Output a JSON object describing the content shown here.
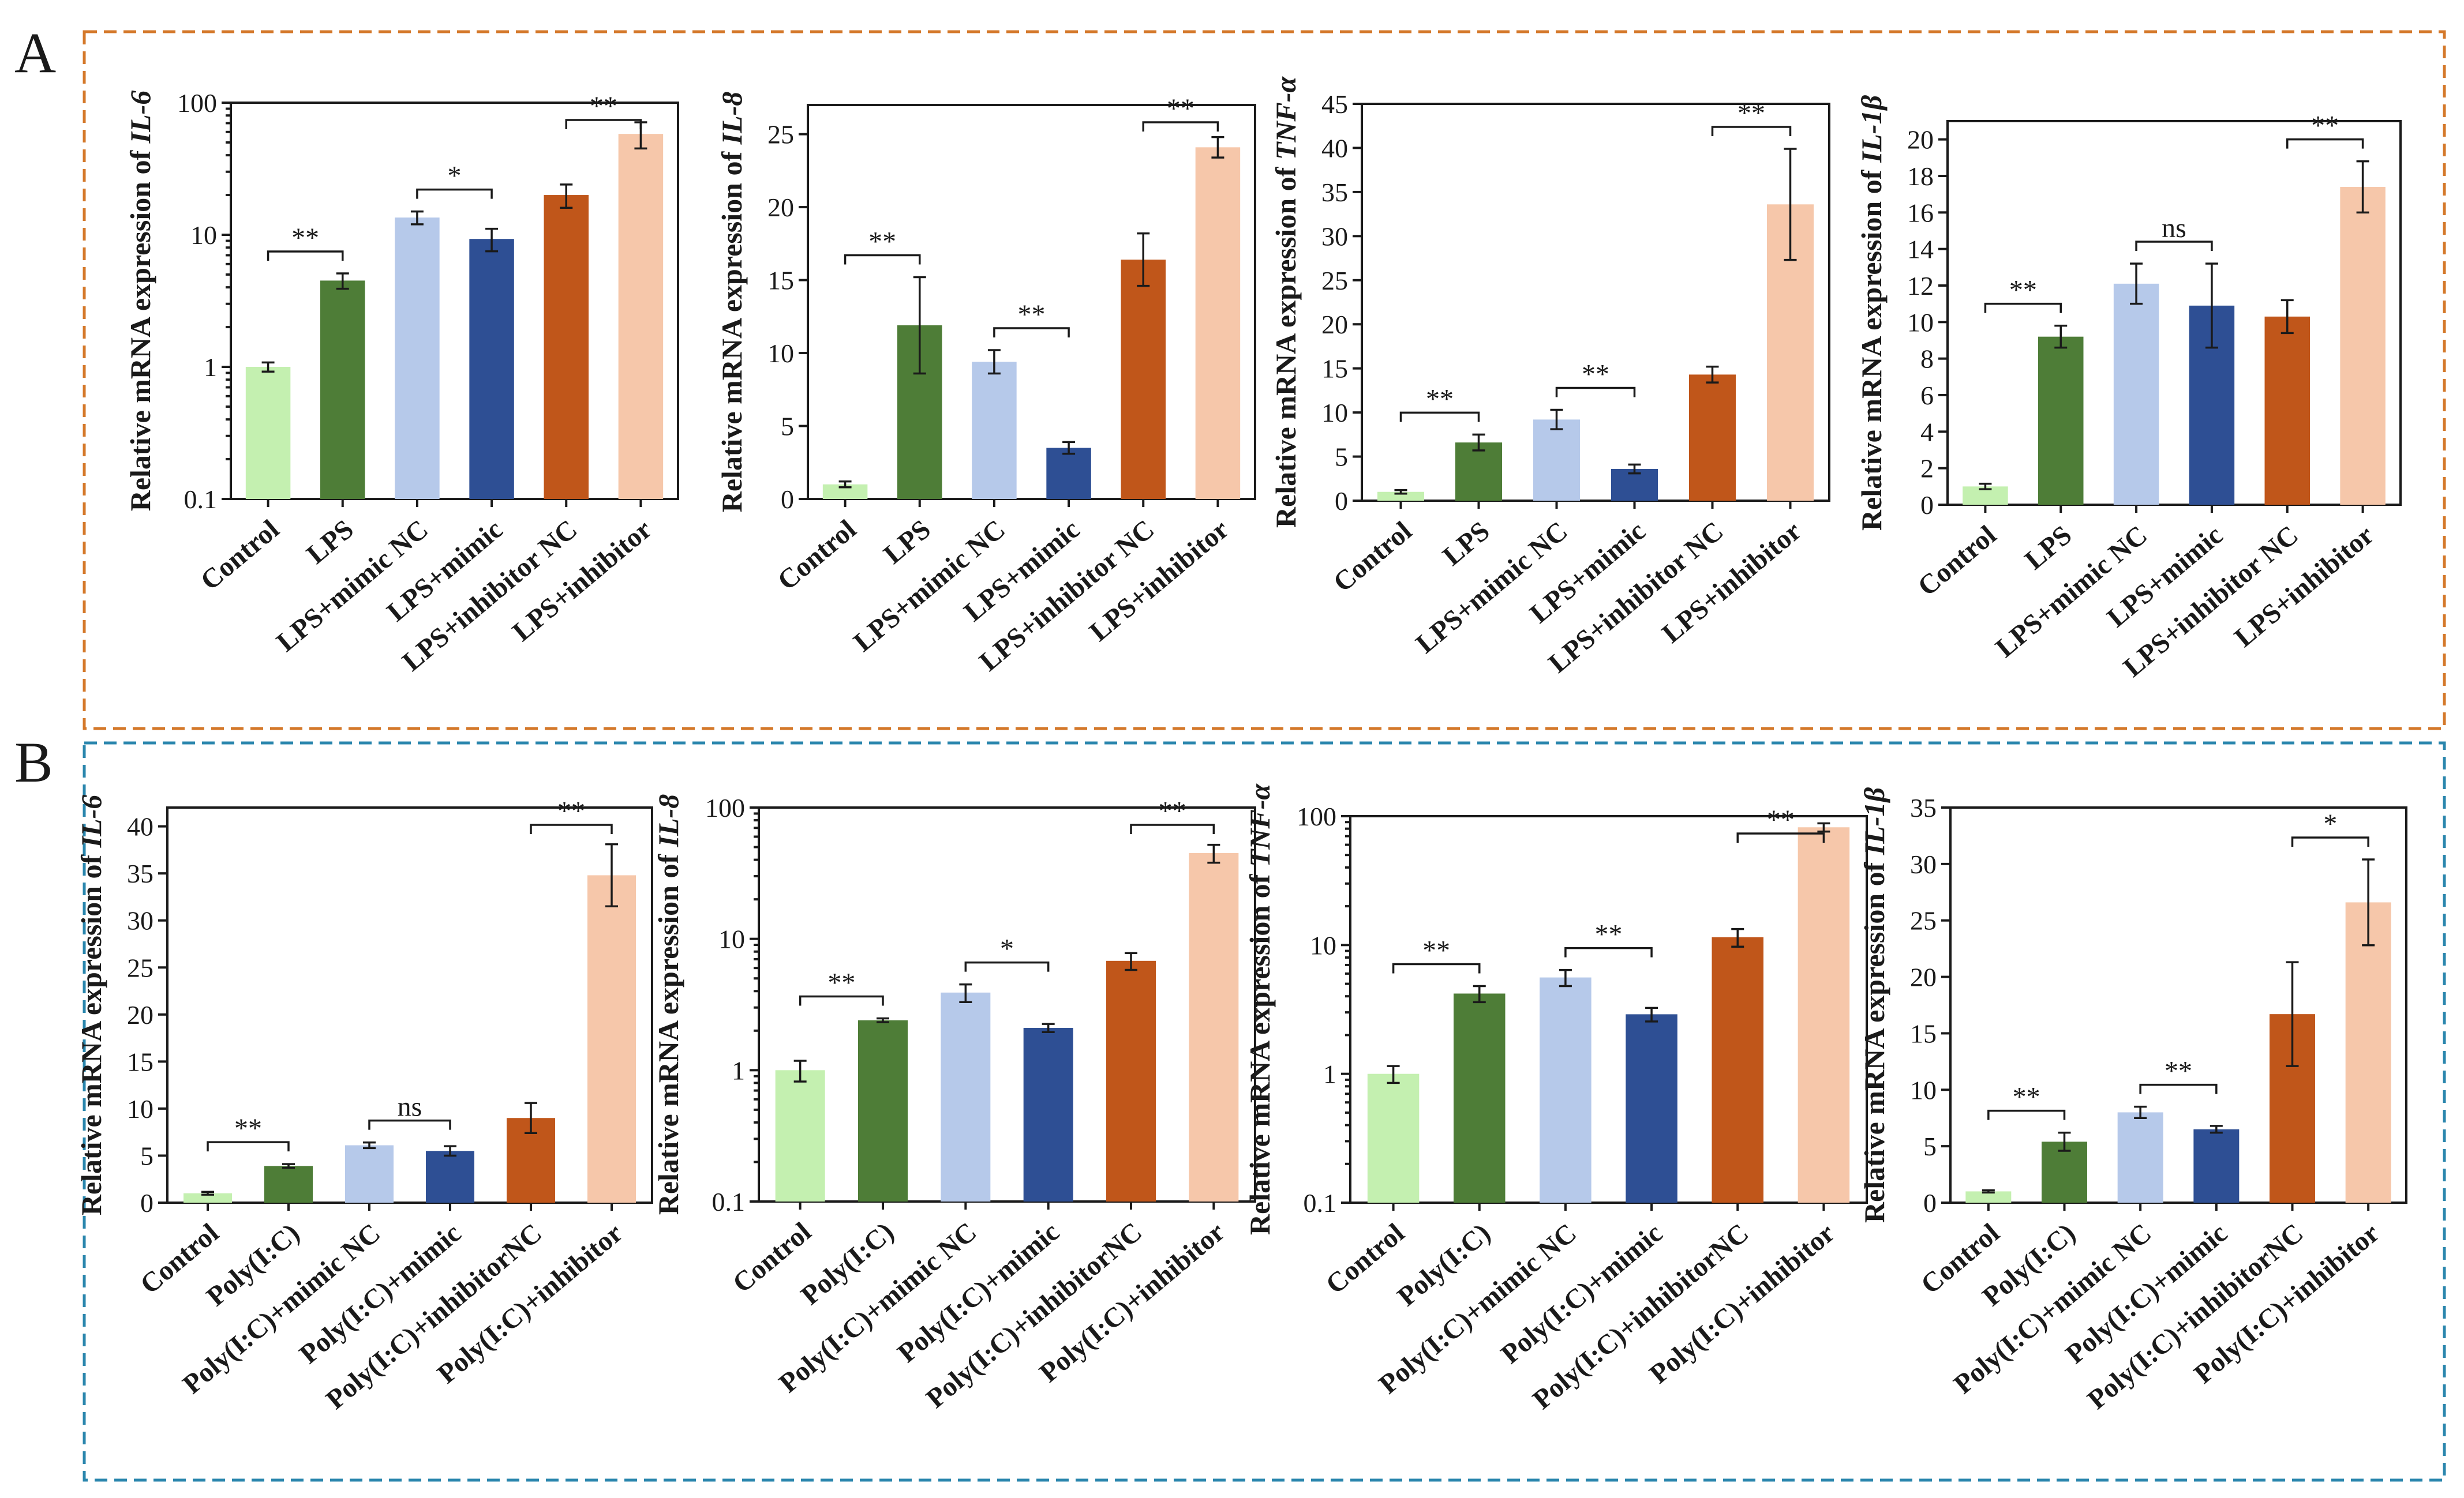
{
  "figure": {
    "panel_labels": [
      "A",
      "B"
    ],
    "colors": {
      "panel_a_border": "#d4782a",
      "panel_b_border": "#2a86ad",
      "bars": [
        "#c4f0b0",
        "#4e7d37",
        "#b6c9ea",
        "#2e4f94",
        "#c0561a",
        "#f6c7aa"
      ]
    }
  },
  "chart_data": [
    {
      "type": "bar",
      "panel": "A",
      "gene": "IL-6",
      "ylabel_prefix": "Relative mRNA expression of ",
      "scale": "log",
      "ylim": [
        0.1,
        100
      ],
      "yticks": [
        0.1,
        1,
        10,
        100
      ],
      "ytick_labels": [
        "0.1",
        "1",
        "10",
        "100"
      ],
      "categories": [
        "Control",
        "LPS",
        "LPS+mimic NC",
        "LPS+mimic",
        "LPS+inhibitor NC",
        "LPS+inhibitor"
      ],
      "values": [
        1.0,
        4.5,
        13.5,
        9.3,
        20,
        58
      ],
      "errors": [
        0.08,
        0.6,
        1.5,
        1.8,
        4,
        13
      ],
      "comparisons": [
        {
          "from": 0,
          "to": 1,
          "label": "**"
        },
        {
          "from": 2,
          "to": 3,
          "label": "*"
        },
        {
          "from": 4,
          "to": 5,
          "label": "**"
        }
      ]
    },
    {
      "type": "bar",
      "panel": "A",
      "gene": "IL-8",
      "ylabel_prefix": "Relative mRNA expression of ",
      "scale": "linear",
      "ylim": [
        0,
        27
      ],
      "yticks": [
        0,
        5,
        10,
        15,
        20,
        25
      ],
      "ytick_labels": [
        "0",
        "5",
        "10",
        "15",
        "20",
        "25"
      ],
      "categories": [
        "Control",
        "LPS",
        "LPS+mimic NC",
        "LPS+mimic",
        "LPS+inhibitor NC",
        "LPS+inhibitor"
      ],
      "values": [
        1.0,
        11.9,
        9.4,
        3.5,
        16.4,
        24.1
      ],
      "errors": [
        0.2,
        3.3,
        0.8,
        0.4,
        1.8,
        0.7
      ],
      "comparisons": [
        {
          "from": 0,
          "to": 1,
          "label": "**"
        },
        {
          "from": 2,
          "to": 3,
          "label": "**"
        },
        {
          "from": 4,
          "to": 5,
          "label": "**"
        }
      ]
    },
    {
      "type": "bar",
      "panel": "A",
      "gene": "TNF-α",
      "ylabel_prefix": "Relative mRNA expression of ",
      "scale": "linear",
      "ylim": [
        0,
        45
      ],
      "yticks": [
        0,
        5,
        10,
        15,
        20,
        25,
        30,
        35,
        40,
        45
      ],
      "ytick_labels": [
        "0",
        "5",
        "10",
        "15",
        "20",
        "25",
        "30",
        "35",
        "40",
        "45"
      ],
      "categories": [
        "Control",
        "LPS",
        "LPS+mimic NC",
        "LPS+mimic",
        "LPS+inhibitor NC",
        "LPS+inhibitor"
      ],
      "values": [
        1.0,
        6.6,
        9.2,
        3.6,
        14.3,
        33.6
      ],
      "errors": [
        0.2,
        0.9,
        1.1,
        0.5,
        0.9,
        6.3
      ],
      "comparisons": [
        {
          "from": 0,
          "to": 1,
          "label": "**"
        },
        {
          "from": 2,
          "to": 3,
          "label": "**"
        },
        {
          "from": 4,
          "to": 5,
          "label": "**"
        }
      ]
    },
    {
      "type": "bar",
      "panel": "A",
      "gene": "IL-1β",
      "ylabel_prefix": "Relative mRNA expression of ",
      "scale": "linear",
      "ylim": [
        0,
        21
      ],
      "yticks": [
        0,
        2,
        4,
        6,
        8,
        10,
        12,
        14,
        16,
        18,
        20
      ],
      "ytick_labels": [
        "0",
        "2",
        "4",
        "6",
        "8",
        "10",
        "12",
        "14",
        "16",
        "18",
        "20"
      ],
      "categories": [
        "Control",
        "LPS",
        "LPS+mimic NC",
        "LPS+mimic",
        "LPS+inhibitor NC",
        "LPS+inhibitor"
      ],
      "values": [
        1.0,
        9.2,
        12.1,
        10.9,
        10.3,
        17.4
      ],
      "errors": [
        0.15,
        0.6,
        1.1,
        2.3,
        0.9,
        1.4
      ],
      "comparisons": [
        {
          "from": 0,
          "to": 1,
          "label": "**"
        },
        {
          "from": 2,
          "to": 3,
          "label": "ns"
        },
        {
          "from": 4,
          "to": 5,
          "label": "**"
        }
      ]
    },
    {
      "type": "bar",
      "panel": "B",
      "gene": "IL-6",
      "ylabel_prefix": "Relative mRNA expression of ",
      "scale": "linear",
      "ylim": [
        0,
        42
      ],
      "yticks": [
        0,
        5,
        10,
        15,
        20,
        25,
        30,
        35,
        40
      ],
      "ytick_labels": [
        "0",
        "5",
        "10",
        "15",
        "20",
        "25",
        "30",
        "35",
        "40"
      ],
      "categories": [
        "Control",
        "Poly(I:C)",
        "Poly(I:C)+mimic NC",
        "Poly(I:C)+mimic",
        "Poly(I:C)+inhibitorNC",
        "Poly(I:C)+inhibitor"
      ],
      "values": [
        1.0,
        3.9,
        6.1,
        5.5,
        9.0,
        34.8
      ],
      "errors": [
        0.15,
        0.2,
        0.3,
        0.5,
        1.6,
        3.3
      ],
      "comparisons": [
        {
          "from": 0,
          "to": 1,
          "label": "**"
        },
        {
          "from": 2,
          "to": 3,
          "label": "ns"
        },
        {
          "from": 4,
          "to": 5,
          "label": "**"
        }
      ]
    },
    {
      "type": "bar",
      "panel": "B",
      "gene": "IL-8",
      "ylabel_prefix": "Relative mRNA expression of ",
      "scale": "log",
      "ylim": [
        0.1,
        100
      ],
      "yticks": [
        0.1,
        1,
        10,
        100
      ],
      "ytick_labels": [
        "0.1",
        "1",
        "10",
        "100"
      ],
      "categories": [
        "Control",
        "Poly(I:C)",
        "Poly(I:C)+mimic NC",
        "Poly(I:C)+mimic",
        "Poly(I:C)+inhibitorNC",
        "Poly(I:C)+inhibitor"
      ],
      "values": [
        1.0,
        2.4,
        3.9,
        2.1,
        6.8,
        45
      ],
      "errors": [
        0.18,
        0.08,
        0.6,
        0.15,
        1.0,
        7
      ],
      "comparisons": [
        {
          "from": 0,
          "to": 1,
          "label": "**"
        },
        {
          "from": 2,
          "to": 3,
          "label": "*"
        },
        {
          "from": 4,
          "to": 5,
          "label": "**"
        }
      ]
    },
    {
      "type": "bar",
      "panel": "B",
      "gene": "TNF-α",
      "ylabel_prefix": "Relative mRNA expression of ",
      "scale": "log",
      "ylim": [
        0.1,
        100
      ],
      "yticks": [
        0.1,
        1,
        10,
        100
      ],
      "ytick_labels": [
        "0.1",
        "1",
        "10",
        "100"
      ],
      "categories": [
        "Control",
        "Poly(I:C)",
        "Poly(I:C)+mimic NC",
        "Poly(I:C)+mimic",
        "Poly(I:C)+inhibitorNC",
        "Poly(I:C)+inhibitor"
      ],
      "values": [
        1.0,
        4.2,
        5.6,
        2.9,
        11.5,
        82
      ],
      "errors": [
        0.15,
        0.6,
        0.8,
        0.35,
        1.8,
        6
      ],
      "comparisons": [
        {
          "from": 0,
          "to": 1,
          "label": "**"
        },
        {
          "from": 2,
          "to": 3,
          "label": "**"
        },
        {
          "from": 4,
          "to": 5,
          "label": "**"
        }
      ]
    },
    {
      "type": "bar",
      "panel": "B",
      "gene": "IL-1β",
      "ylabel_prefix": "Relative mRNA expression of ",
      "scale": "linear",
      "ylim": [
        0,
        35
      ],
      "yticks": [
        0,
        5,
        10,
        15,
        20,
        25,
        30,
        35
      ],
      "ytick_labels": [
        "0",
        "5",
        "10",
        "15",
        "20",
        "25",
        "30",
        "35"
      ],
      "categories": [
        "Control",
        "Poly(I:C)",
        "Poly(I:C)+mimic NC",
        "Poly(I:C)+mimic",
        "Poly(I:C)+inhibitorNC",
        "Poly(I:C)+inhibitor"
      ],
      "values": [
        1.0,
        5.4,
        8.0,
        6.5,
        16.7,
        26.6
      ],
      "errors": [
        0.1,
        0.8,
        0.5,
        0.3,
        4.6,
        3.8
      ],
      "comparisons": [
        {
          "from": 0,
          "to": 1,
          "label": "**"
        },
        {
          "from": 2,
          "to": 3,
          "label": "**"
        },
        {
          "from": 4,
          "to": 5,
          "label": "*"
        }
      ]
    }
  ]
}
